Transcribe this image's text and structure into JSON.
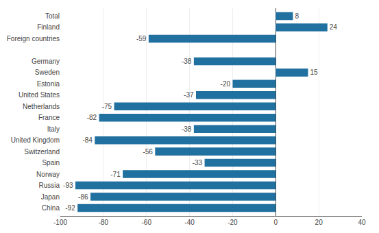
{
  "chart_data": {
    "type": "bar",
    "orientation": "horizontal",
    "categories": [
      "China",
      "Japan",
      "Russia",
      "Norway",
      "Spain",
      "Switzerland",
      "United Kingdom",
      "Italy",
      "France",
      "Netherlands",
      "United States",
      "Estonia",
      "Sweden",
      "Germany",
      null,
      "Foreign countries",
      "Finland",
      "Total"
    ],
    "values": [
      -92,
      -86,
      -93,
      -71,
      -33,
      -56,
      -84,
      -38,
      -82,
      -75,
      -37,
      -20,
      15,
      -38,
      null,
      -59,
      24,
      8
    ],
    "color": "#2070a0",
    "xlim": [
      -100,
      40
    ],
    "xticks": [
      -100,
      -80,
      -60,
      -40,
      -20,
      0,
      20,
      40
    ],
    "grid": true,
    "data_labels": true
  }
}
